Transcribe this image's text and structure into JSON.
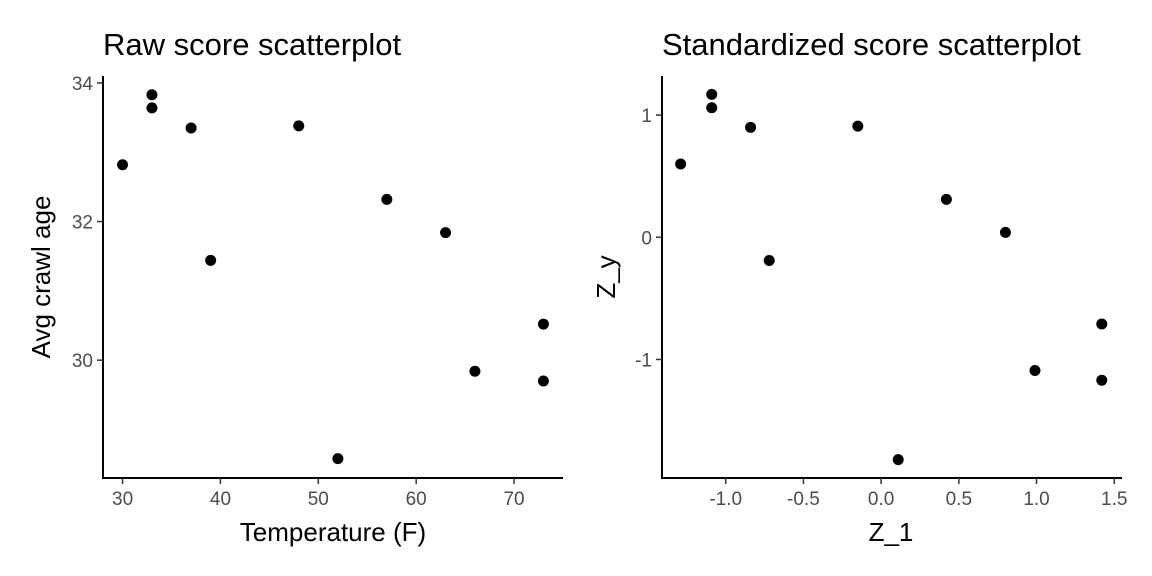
{
  "chart_data": [
    {
      "type": "scatter",
      "title": "Raw score scatterplot",
      "xlabel": "Temperature (F)",
      "ylabel": "Avg crawl age",
      "xlim": [
        28,
        75
      ],
      "ylim": [
        28.3,
        34.1
      ],
      "xticks": [
        30,
        40,
        50,
        60,
        70
      ],
      "yticks": [
        30,
        32,
        34
      ],
      "grid": false,
      "x": [
        30,
        33,
        33,
        37,
        39,
        48,
        52,
        57,
        63,
        66,
        73,
        73
      ],
      "y": [
        32.82,
        33.83,
        33.64,
        33.35,
        31.44,
        33.38,
        28.58,
        32.32,
        31.84,
        29.84,
        30.52,
        29.7
      ]
    },
    {
      "type": "scatter",
      "title": "Standardized score scatterplot",
      "xlabel": "Z_1",
      "ylabel": "Z_y",
      "xlim": [
        -1.41,
        1.55
      ],
      "ylim": [
        -1.97,
        1.32
      ],
      "xticks": [
        -1.0,
        -0.5,
        0.0,
        0.5,
        1.0,
        1.5
      ],
      "xtick_labels": [
        "-1.0",
        "-0.5",
        "0.0",
        "0.5",
        "1.0",
        "1.5"
      ],
      "yticks": [
        -1,
        0,
        1
      ],
      "grid": false,
      "x": [
        -1.29,
        -1.09,
        -1.09,
        -0.84,
        -0.72,
        -0.15,
        0.11,
        0.42,
        0.8,
        0.99,
        1.42,
        1.42
      ],
      "y": [
        0.6,
        1.17,
        1.06,
        0.9,
        -0.19,
        0.91,
        -1.82,
        0.31,
        0.04,
        -1.09,
        -0.71,
        -1.17
      ]
    }
  ]
}
